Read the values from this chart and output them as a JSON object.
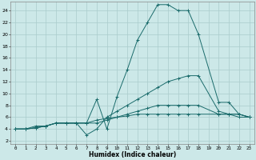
{
  "title": "",
  "xlabel": "Humidex (Indice chaleur)",
  "ylabel": "",
  "bg_color": "#cce8e8",
  "grid_color": "#aacccc",
  "line_color": "#1a6b6b",
  "xlim": [
    -0.5,
    23.5
  ],
  "ylim": [
    1.5,
    25.5
  ],
  "xticks": [
    0,
    1,
    2,
    3,
    4,
    5,
    6,
    7,
    8,
    9,
    10,
    11,
    12,
    13,
    14,
    15,
    16,
    17,
    18,
    19,
    20,
    21,
    22,
    23
  ],
  "yticks": [
    2,
    4,
    6,
    8,
    10,
    12,
    14,
    16,
    18,
    20,
    22,
    24
  ],
  "series": [
    {
      "x": [
        0,
        1,
        2,
        3,
        4,
        5,
        6,
        7,
        8,
        9,
        10,
        11,
        12,
        13,
        14,
        15,
        16,
        17,
        18,
        20,
        21,
        22,
        23
      ],
      "y": [
        4,
        4,
        4.5,
        4.5,
        5,
        5,
        5,
        5,
        9,
        4,
        9.5,
        14,
        19,
        22,
        25,
        25,
        24,
        24,
        20,
        8.5,
        8.5,
        6.5,
        6
      ]
    },
    {
      "x": [
        0,
        1,
        2,
        3,
        4,
        5,
        6,
        7,
        8,
        9,
        10,
        11,
        12,
        13,
        14,
        15,
        16,
        17,
        18,
        20,
        21,
        22,
        23
      ],
      "y": [
        4,
        4,
        4.2,
        4.5,
        5,
        5,
        5,
        3,
        4,
        6,
        7,
        8,
        9,
        10,
        11,
        12,
        12.5,
        13,
        13,
        7,
        6.5,
        6,
        6
      ]
    },
    {
      "x": [
        0,
        1,
        2,
        3,
        4,
        5,
        6,
        7,
        8,
        9,
        10,
        11,
        12,
        13,
        14,
        15,
        16,
        17,
        18,
        20,
        21,
        22,
        23
      ],
      "y": [
        4,
        4,
        4.2,
        4.5,
        5,
        5,
        5,
        5,
        5,
        5.5,
        6,
        6.5,
        7,
        7.5,
        8,
        8,
        8,
        8,
        8,
        6.5,
        6.5,
        6.5,
        6
      ]
    },
    {
      "x": [
        0,
        1,
        2,
        3,
        4,
        5,
        6,
        7,
        8,
        9,
        10,
        11,
        12,
        13,
        14,
        15,
        16,
        17,
        18,
        20,
        21,
        22,
        23
      ],
      "y": [
        4,
        4,
        4.2,
        4.5,
        5,
        5,
        5,
        5,
        5.5,
        5.8,
        6,
        6.2,
        6.5,
        6.5,
        6.5,
        6.5,
        6.5,
        6.5,
        6.5,
        6.5,
        6.5,
        6.5,
        6
      ]
    }
  ]
}
